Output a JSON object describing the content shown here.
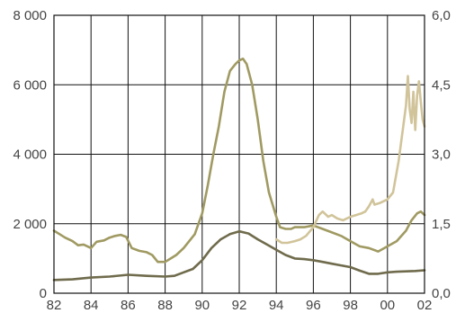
{
  "chart_data": {
    "type": "line",
    "title": "",
    "xlabel": "",
    "ylabel": "",
    "xlim": [
      1982,
      2002
    ],
    "ylim_left": [
      0,
      8000
    ],
    "ylim_right": [
      0,
      6
    ],
    "grid": true,
    "legend": "none",
    "x_ticks": [
      {
        "value": 1982,
        "label": "82"
      },
      {
        "value": 1984,
        "label": "84"
      },
      {
        "value": 1986,
        "label": "86"
      },
      {
        "value": 1988,
        "label": "88"
      },
      {
        "value": 1990,
        "label": "90"
      },
      {
        "value": 1992,
        "label": "92"
      },
      {
        "value": 1994,
        "label": "94"
      },
      {
        "value": 1996,
        "label": "96"
      },
      {
        "value": 1998,
        "label": "98"
      },
      {
        "value": 2000,
        "label": "00"
      },
      {
        "value": 2002,
        "label": "02"
      }
    ],
    "y_left_ticks": [
      {
        "value": 0,
        "label": "0"
      },
      {
        "value": 2000,
        "label": "2 000"
      },
      {
        "value": 4000,
        "label": "4 000"
      },
      {
        "value": 6000,
        "label": "6 000"
      },
      {
        "value": 8000,
        "label": "8 000"
      }
    ],
    "y_right_ticks": [
      {
        "value": 0,
        "label": "0,0"
      },
      {
        "value": 1.5,
        "label": "1,5"
      },
      {
        "value": 3,
        "label": "3,0"
      },
      {
        "value": 4.5,
        "label": "4,5"
      },
      {
        "value": 6,
        "label": "6,0"
      }
    ],
    "series": [
      {
        "axis": "left",
        "color": "#a09a62",
        "points": [
          [
            1982.0,
            1800
          ],
          [
            1982.3,
            1700
          ],
          [
            1982.6,
            1600
          ],
          [
            1983.0,
            1500
          ],
          [
            1983.3,
            1380
          ],
          [
            1983.6,
            1400
          ],
          [
            1984.0,
            1300
          ],
          [
            1984.3,
            1480
          ],
          [
            1984.7,
            1520
          ],
          [
            1985.0,
            1600
          ],
          [
            1985.3,
            1650
          ],
          [
            1985.6,
            1680
          ],
          [
            1985.9,
            1620
          ],
          [
            1986.2,
            1300
          ],
          [
            1986.6,
            1220
          ],
          [
            1987.0,
            1180
          ],
          [
            1987.3,
            1100
          ],
          [
            1987.6,
            900
          ],
          [
            1988.0,
            900
          ],
          [
            1988.3,
            1000
          ],
          [
            1988.6,
            1100
          ],
          [
            1989.0,
            1300
          ],
          [
            1989.3,
            1500
          ],
          [
            1989.6,
            1700
          ],
          [
            1990.0,
            2300
          ],
          [
            1990.3,
            3100
          ],
          [
            1990.6,
            4000
          ],
          [
            1990.9,
            4800
          ],
          [
            1991.2,
            5800
          ],
          [
            1991.5,
            6400
          ],
          [
            1991.8,
            6600
          ],
          [
            1992.0,
            6700
          ],
          [
            1992.2,
            6750
          ],
          [
            1992.4,
            6600
          ],
          [
            1992.7,
            6000
          ],
          [
            1993.0,
            5000
          ],
          [
            1993.3,
            3800
          ],
          [
            1993.6,
            2900
          ],
          [
            1994.0,
            2200
          ],
          [
            1994.2,
            1900
          ],
          [
            1994.5,
            1850
          ],
          [
            1994.8,
            1850
          ],
          [
            1995.0,
            1900
          ],
          [
            1995.5,
            1900
          ],
          [
            1996.0,
            1950
          ],
          [
            1996.5,
            1850
          ],
          [
            1997.0,
            1750
          ],
          [
            1997.5,
            1650
          ],
          [
            1998.0,
            1500
          ],
          [
            1998.5,
            1350
          ],
          [
            1999.0,
            1300
          ],
          [
            1999.5,
            1200
          ],
          [
            2000.0,
            1350
          ],
          [
            2000.5,
            1500
          ],
          [
            2001.0,
            1800
          ],
          [
            2001.3,
            2100
          ],
          [
            2001.6,
            2300
          ],
          [
            2001.8,
            2350
          ],
          [
            2002.0,
            2250
          ]
        ]
      },
      {
        "axis": "left",
        "color": "#d1c49a",
        "points": [
          [
            1994.0,
            1550
          ],
          [
            1994.3,
            1450
          ],
          [
            1994.6,
            1450
          ],
          [
            1995.0,
            1500
          ],
          [
            1995.3,
            1550
          ],
          [
            1995.6,
            1650
          ],
          [
            1996.0,
            1900
          ],
          [
            1996.3,
            2250
          ],
          [
            1996.5,
            2350
          ],
          [
            1996.8,
            2200
          ],
          [
            1997.0,
            2250
          ],
          [
            1997.3,
            2150
          ],
          [
            1997.6,
            2100
          ],
          [
            1998.0,
            2200
          ],
          [
            1998.3,
            2250
          ],
          [
            1998.6,
            2300
          ],
          [
            1998.8,
            2350
          ],
          [
            1999.0,
            2500
          ],
          [
            1999.2,
            2700
          ],
          [
            1999.3,
            2550
          ],
          [
            1999.6,
            2600
          ],
          [
            2000.0,
            2700
          ],
          [
            2000.3,
            2900
          ],
          [
            2000.6,
            3800
          ],
          [
            2000.8,
            4600
          ],
          [
            2001.0,
            5400
          ],
          [
            2001.1,
            6250
          ],
          [
            2001.2,
            5300
          ],
          [
            2001.3,
            4900
          ],
          [
            2001.4,
            5800
          ],
          [
            2001.5,
            4700
          ],
          [
            2001.6,
            5700
          ],
          [
            2001.7,
            6100
          ],
          [
            2001.8,
            5500
          ],
          [
            2001.9,
            5000
          ],
          [
            2002.0,
            4800
          ]
        ]
      },
      {
        "axis": "left",
        "color": "#6f6b4c",
        "points": [
          [
            1982.0,
            380
          ],
          [
            1983.0,
            400
          ],
          [
            1984.0,
            450
          ],
          [
            1985.0,
            480
          ],
          [
            1986.0,
            530
          ],
          [
            1987.0,
            500
          ],
          [
            1988.0,
            480
          ],
          [
            1988.5,
            500
          ],
          [
            1989.0,
            600
          ],
          [
            1989.5,
            700
          ],
          [
            1990.0,
            950
          ],
          [
            1990.5,
            1300
          ],
          [
            1991.0,
            1550
          ],
          [
            1991.5,
            1700
          ],
          [
            1992.0,
            1780
          ],
          [
            1992.5,
            1720
          ],
          [
            1993.0,
            1550
          ],
          [
            1993.5,
            1400
          ],
          [
            1994.0,
            1250
          ],
          [
            1994.5,
            1100
          ],
          [
            1995.0,
            1000
          ],
          [
            1995.5,
            980
          ],
          [
            1996.0,
            950
          ],
          [
            1996.5,
            900
          ],
          [
            1997.0,
            850
          ],
          [
            1997.5,
            800
          ],
          [
            1998.0,
            750
          ],
          [
            1998.5,
            650
          ],
          [
            1999.0,
            560
          ],
          [
            1999.5,
            560
          ],
          [
            2000.0,
            600
          ],
          [
            2000.5,
            620
          ],
          [
            2001.0,
            630
          ],
          [
            2001.5,
            640
          ],
          [
            2002.0,
            660
          ]
        ]
      }
    ]
  }
}
